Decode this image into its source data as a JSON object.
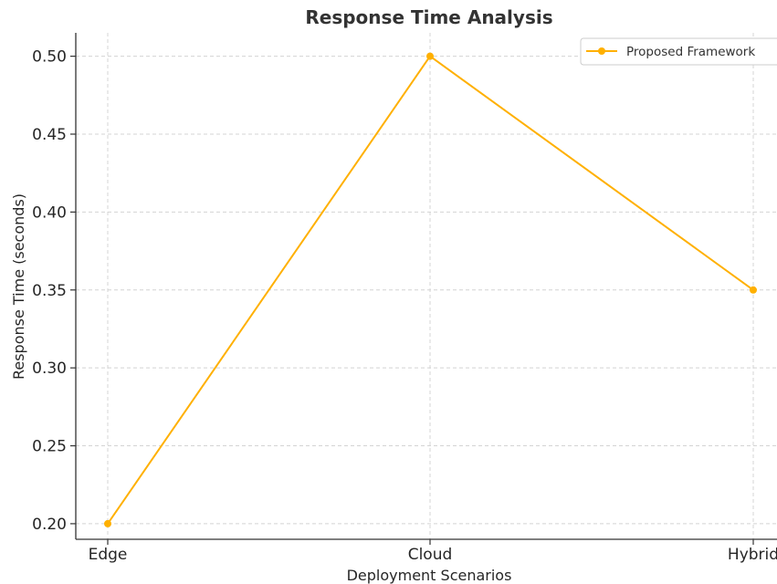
{
  "chart_data": {
    "type": "line",
    "title": "Response Time Analysis",
    "xlabel": "Deployment Scenarios",
    "ylabel": "Response Time (seconds)",
    "categories": [
      "Edge",
      "Cloud",
      "Hybrid"
    ],
    "series": [
      {
        "name": "Proposed Framework",
        "values": [
          0.2,
          0.5,
          0.35
        ],
        "color": "#FFB000"
      }
    ],
    "ylim": [
      0.19,
      0.515
    ],
    "yticks": [
      {
        "value": 0.2,
        "label": "0.20"
      },
      {
        "value": 0.25,
        "label": "0.25"
      },
      {
        "value": 0.3,
        "label": "0.30"
      },
      {
        "value": 0.35,
        "label": "0.35"
      },
      {
        "value": 0.4,
        "label": "0.40"
      },
      {
        "value": 0.45,
        "label": "0.45"
      },
      {
        "value": 0.5,
        "label": "0.50"
      }
    ],
    "grid": true,
    "grid_style": "dashed",
    "legend_position": "top-right",
    "colors": {
      "axis": "#333333",
      "grid": "#d4d4d4",
      "text": "#262626"
    }
  }
}
